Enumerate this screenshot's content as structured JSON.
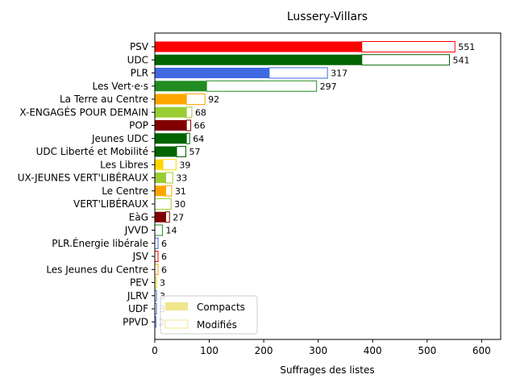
{
  "chart_data": {
    "type": "bar",
    "orientation": "horizontal",
    "stacked": true,
    "title": "Lussery-Villars",
    "xlabel": "Suffrages des listes",
    "ylabel": "",
    "xlim": [
      0,
      635
    ],
    "xticks": [
      0,
      100,
      200,
      300,
      400,
      500,
      600
    ],
    "grid": false,
    "legend_position": "lower-left",
    "legend": [
      "Compacts",
      "Modifiés"
    ],
    "legend_colors": {
      "compacts": "#f0e68c",
      "modifies_edge": "#f0e68c"
    },
    "categories": [
      "PSV",
      "UDC",
      "PLR",
      "Les Vert·e·s",
      "La Terre au Centre",
      "X-ENGAGÉS POUR DEMAIN",
      "POP",
      "Jeunes UDC",
      "UDC Liberté et Mobilité",
      "Les Libres",
      "UX-JEUNES VERT'LIBÉRAUX",
      "Le Centre",
      "VERT'LIBÉRAUX",
      "EàG",
      "JVVD",
      "PLR.Énergie libérale",
      "JSV",
      "Les Jeunes du Centre",
      "PEV",
      "JLRV",
      "UDF",
      "PPVD"
    ],
    "colors": [
      "#ff0000",
      "#006400",
      "#4169e1",
      "#228b22",
      "#ffa500",
      "#9acd32",
      "#800000",
      "#006400",
      "#006400",
      "#ffd700",
      "#9acd32",
      "#ffa500",
      "#9acd32",
      "#800000",
      "#228b22",
      "#4169e1",
      "#ff0000",
      "#ffa500",
      "#ffd700",
      "#4169e1",
      "#4169e1",
      "#4169e1"
    ],
    "series": [
      {
        "name": "Compacts",
        "values": [
          380,
          380,
          210,
          95,
          58,
          58,
          58,
          58,
          40,
          15,
          20,
          20,
          0,
          20,
          0,
          0,
          0,
          0,
          0,
          0,
          0,
          0
        ]
      },
      {
        "name": "Modifiés",
        "values": [
          171,
          161,
          107,
          202,
          34,
          10,
          8,
          6,
          17,
          24,
          13,
          11,
          30,
          7,
          14,
          6,
          6,
          6,
          3,
          3,
          3,
          2
        ]
      }
    ],
    "totals": [
      551,
      541,
      317,
      297,
      92,
      68,
      66,
      64,
      57,
      39,
      33,
      31,
      30,
      27,
      14,
      6,
      6,
      6,
      3,
      3,
      3,
      2
    ]
  }
}
